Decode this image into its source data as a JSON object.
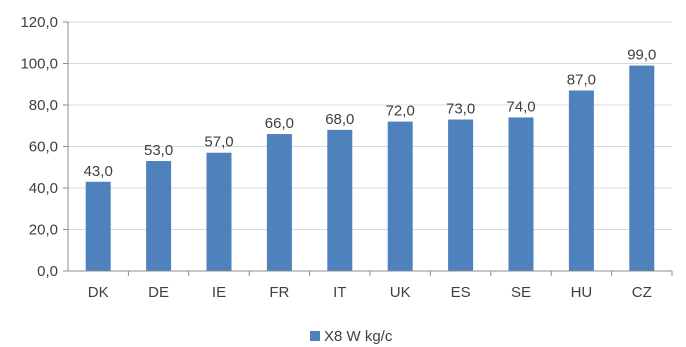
{
  "chart_data": {
    "type": "bar",
    "categories": [
      "DK",
      "DE",
      "IE",
      "FR",
      "IT",
      "UK",
      "ES",
      "SE",
      "HU",
      "CZ"
    ],
    "series": [
      {
        "name": "X8 W kg/c",
        "values": [
          43.0,
          53.0,
          57.0,
          66.0,
          68.0,
          72.0,
          73.0,
          74.0,
          87.0,
          99.0
        ],
        "data_labels": [
          "43,0",
          "53,0",
          "57,0",
          "66,0",
          "68,0",
          "72,0",
          "73,0",
          "74,0",
          "87,0",
          "99,0"
        ]
      }
    ],
    "y_ticks": [
      0,
      20,
      40,
      60,
      80,
      100,
      120
    ],
    "y_tick_labels": [
      "0,0",
      "20,0",
      "40,0",
      "60,0",
      "80,0",
      "100,0",
      "120,0"
    ],
    "ylim": [
      0,
      120
    ],
    "grid": true,
    "legend_position": "bottom",
    "colors": {
      "bar": "#4f81bd",
      "grid": "#d9d9d9",
      "axis": "#8c8c8c",
      "text": "#404040"
    }
  }
}
